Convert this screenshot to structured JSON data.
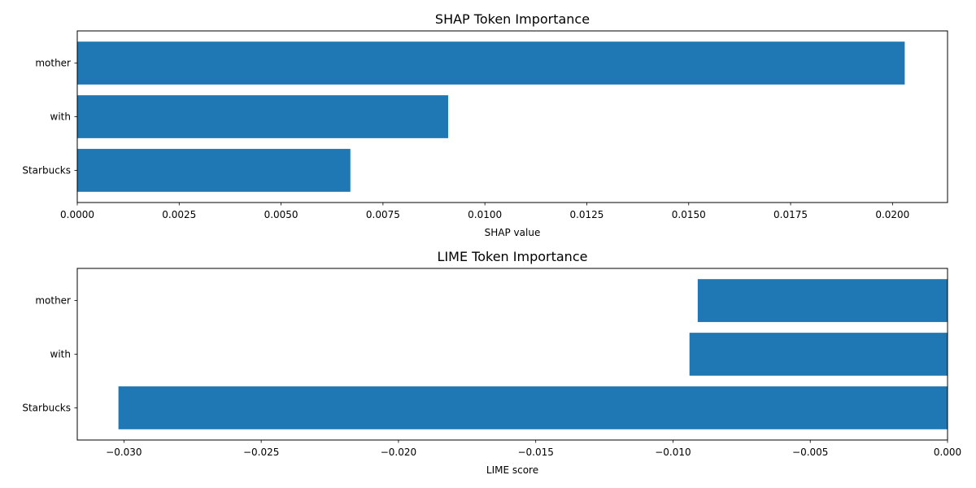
{
  "chart_data": [
    {
      "type": "bar",
      "orientation": "horizontal",
      "title": "SHAP Token Importance",
      "xlabel": "SHAP value",
      "ylabel": "",
      "categories": [
        "mother",
        "with",
        "Starbucks"
      ],
      "values": [
        0.0203,
        0.0091,
        0.0067
      ],
      "xlim": [
        0,
        0.02135
      ],
      "xticks": [
        0.0,
        0.0025,
        0.005,
        0.0075,
        0.01,
        0.0125,
        0.015,
        0.0175,
        0.02
      ],
      "xtick_labels": [
        "0.0000",
        "0.0025",
        "0.0050",
        "0.0075",
        "0.0100",
        "0.0125",
        "0.0150",
        "0.0175",
        "0.0200"
      ],
      "grid": false,
      "color": "#1f77b4"
    },
    {
      "type": "bar",
      "orientation": "horizontal",
      "title": "LIME Token Importance",
      "xlabel": "LIME score",
      "ylabel": "",
      "categories": [
        "mother",
        "with",
        "Starbucks"
      ],
      "values": [
        -0.0091,
        -0.0094,
        -0.0302
      ],
      "xlim": [
        -0.0317,
        0
      ],
      "xticks": [
        -0.03,
        -0.025,
        -0.02,
        -0.015,
        -0.01,
        -0.005,
        0.0
      ],
      "xtick_labels": [
        "−0.030",
        "−0.025",
        "−0.020",
        "−0.015",
        "−0.010",
        "−0.005",
        "0.000"
      ],
      "grid": false,
      "color": "#1f77b4"
    }
  ]
}
